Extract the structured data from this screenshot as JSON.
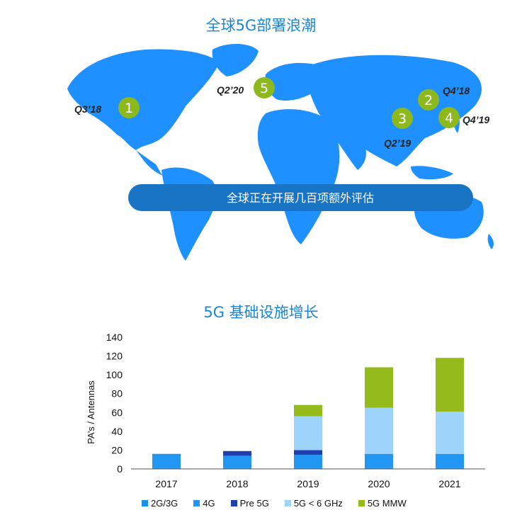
{
  "map": {
    "title": "全球5G部署浪潮",
    "banner": "全球正在开展几百项额外评估",
    "markers": [
      {
        "number": "1",
        "label": "Q3’18"
      },
      {
        "number": "2",
        "label": "Q4’18"
      },
      {
        "number": "3",
        "label": "Q2’19"
      },
      {
        "number": "4",
        "label": "Q4’19"
      },
      {
        "number": "5",
        "label": "Q2’20"
      }
    ],
    "colors": {
      "land": "#1e90ff",
      "banner": "#1a74c4",
      "marker": "#8db81e"
    }
  },
  "chart_data": {
    "type": "bar",
    "stacked": true,
    "title": "5G 基础设施增长",
    "ylabel": "PA’s / Antennas",
    "xlabel": "",
    "ylim": [
      0,
      140
    ],
    "yticks": [
      "0",
      "20",
      "40",
      "60",
      "80",
      "100",
      "120",
      "140"
    ],
    "categories": [
      "2017",
      "2018",
      "2019",
      "2020",
      "2021"
    ],
    "series": [
      {
        "name": "2G/3G",
        "color": "#1a90e8",
        "values": [
          1,
          1,
          1,
          1,
          1
        ]
      },
      {
        "name": "4G",
        "color": "#2196f3",
        "values": [
          15,
          13,
          14,
          15,
          15
        ]
      },
      {
        "name": "Pre 5G",
        "color": "#1f3fb0",
        "values": [
          0,
          5,
          5,
          0,
          0
        ]
      },
      {
        "name": "5G < 6 GHz",
        "color": "#9ed4fb",
        "values": [
          0,
          0,
          36,
          49,
          45
        ]
      },
      {
        "name": "5G MMW",
        "color": "#95ba1c",
        "values": [
          0,
          0,
          12,
          43,
          57
        ]
      }
    ],
    "grid": false,
    "legend_position": "bottom"
  }
}
